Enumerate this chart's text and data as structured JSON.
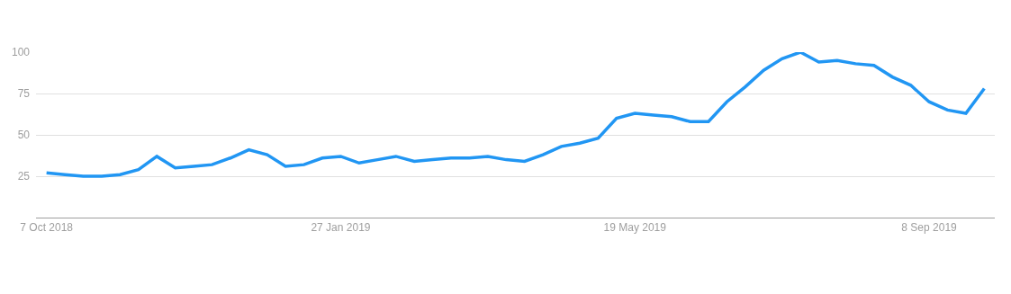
{
  "chart_data": {
    "type": "line",
    "x": [
      "2018-10-07",
      "2018-10-14",
      "2018-10-21",
      "2018-10-28",
      "2018-11-04",
      "2018-11-11",
      "2018-11-18",
      "2018-11-25",
      "2018-12-02",
      "2018-12-09",
      "2018-12-16",
      "2018-12-23",
      "2018-12-30",
      "2019-01-06",
      "2019-01-13",
      "2019-01-20",
      "2019-01-27",
      "2019-02-03",
      "2019-02-10",
      "2019-02-17",
      "2019-02-24",
      "2019-03-03",
      "2019-03-10",
      "2019-03-17",
      "2019-03-24",
      "2019-03-31",
      "2019-04-07",
      "2019-04-14",
      "2019-04-21",
      "2019-04-28",
      "2019-05-05",
      "2019-05-12",
      "2019-05-19",
      "2019-05-26",
      "2019-06-02",
      "2019-06-09",
      "2019-06-16",
      "2019-06-23",
      "2019-06-30",
      "2019-07-07",
      "2019-07-14",
      "2019-07-21",
      "2019-07-28",
      "2019-08-04",
      "2019-08-11",
      "2019-08-18",
      "2019-08-25",
      "2019-09-01",
      "2019-09-08",
      "2019-09-15",
      "2019-09-22",
      "2019-09-29"
    ],
    "series": [
      {
        "color": "#2196f3",
        "values": [
          27,
          26,
          25,
          25,
          26,
          29,
          37,
          30,
          31,
          32,
          36,
          41,
          38,
          31,
          32,
          36,
          37,
          33,
          35,
          37,
          34,
          35,
          36,
          36,
          37,
          35,
          34,
          38,
          43,
          45,
          48,
          60,
          63,
          62,
          61,
          58,
          58,
          70,
          79,
          89,
          96,
          100,
          94,
          95,
          93,
          92,
          85,
          80,
          70,
          65,
          63,
          78
        ]
      }
    ],
    "xlim": [
      "2018-10-03",
      "2019-10-03"
    ],
    "xticks": [
      {
        "value": "2018-10-07",
        "label": "7 Oct 2018"
      },
      {
        "value": "2019-01-27",
        "label": "27 Jan 2019"
      },
      {
        "value": "2019-05-19",
        "label": "19 May 2019"
      },
      {
        "value": "2019-09-08",
        "label": "8 Sep 2019"
      }
    ],
    "ylim": [
      0,
      100
    ],
    "yticks": [
      25,
      50,
      75,
      100
    ],
    "grid": "y",
    "marker": "none",
    "line_style": "solid"
  }
}
